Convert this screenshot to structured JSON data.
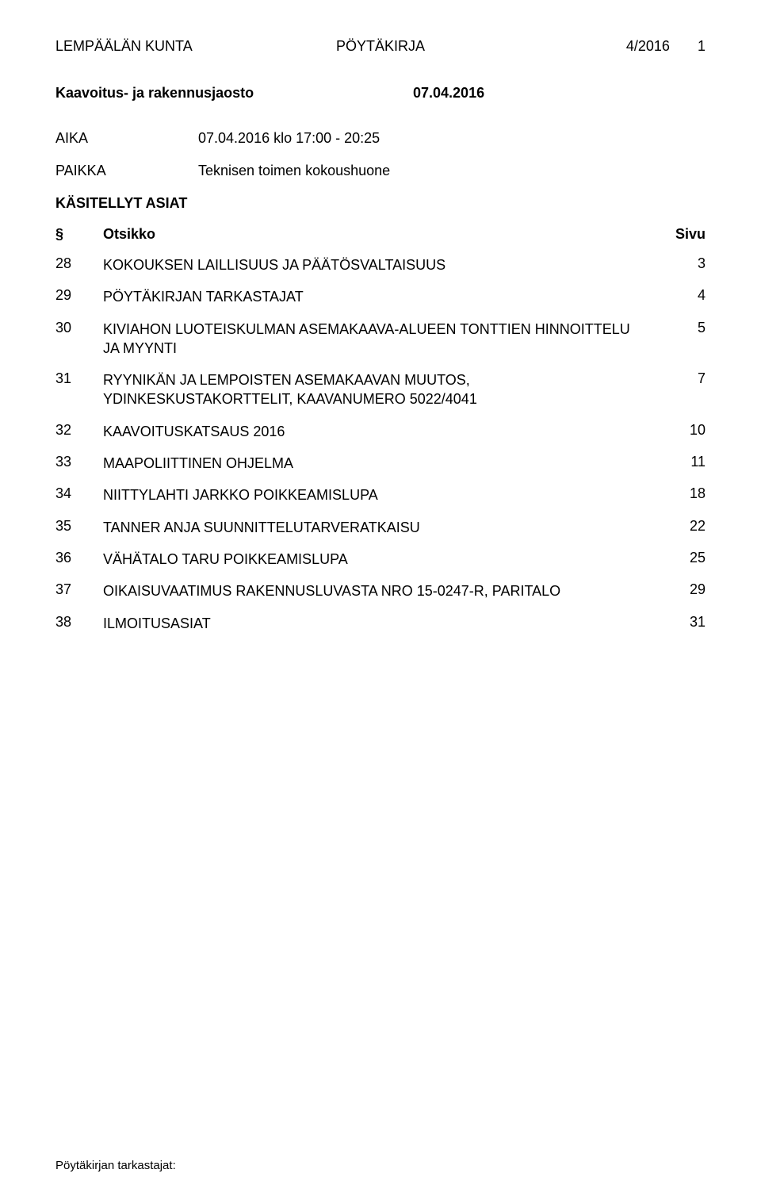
{
  "header": {
    "org": "LEMPÄÄLÄN KUNTA",
    "doc_type": "PÖYTÄKIRJA",
    "doc_num": "4/2016",
    "page": "1"
  },
  "subheader": {
    "board": "Kaavoitus- ja rakennusjaosto",
    "date": "07.04.2016"
  },
  "meta": {
    "aika_label": "AIKA",
    "aika_value": "07.04.2016 klo 17:00 - 20:25",
    "paikka_label": "PAIKKA",
    "paikka_value": "Teknisen toimen kokoushuone"
  },
  "section_title": "KÄSITELLYT ASIAT",
  "toc_header": {
    "num": "§",
    "title": "Otsikko",
    "page": "Sivu"
  },
  "toc": [
    {
      "num": "28",
      "title": "KOKOUKSEN LAILLISUUS JA PÄÄTÖSVALTAISUUS",
      "page": "3"
    },
    {
      "num": "29",
      "title": "PÖYTÄKIRJAN TARKASTAJAT",
      "page": "4"
    },
    {
      "num": "30",
      "title": "KIVIAHON LUOTEISKULMAN ASEMAKAAVA-ALUEEN TONTTIEN HINNOITTELU JA MYYNTI",
      "page": "5"
    },
    {
      "num": "31",
      "title": "RYYNIKÄN JA LEMPOISTEN ASEMAKAAVAN MUUTOS, YDINKESKUSTAKORTTELIT, KAAVANUMERO 5022/4041",
      "page": "7"
    },
    {
      "num": "32",
      "title": "KAAVOITUSKATSAUS 2016",
      "page": "10"
    },
    {
      "num": "33",
      "title": "MAAPOLIITTINEN OHJELMA",
      "page": "11"
    },
    {
      "num": "34",
      "title": "NIITTYLAHTI JARKKO POIKKEAMISLUPA",
      "page": "18"
    },
    {
      "num": "35",
      "title": "TANNER ANJA SUUNNITTELUTARVERATKAISU",
      "page": "22"
    },
    {
      "num": "36",
      "title": "VÄHÄTALO TARU POIKKEAMISLUPA",
      "page": "25"
    },
    {
      "num": "37",
      "title": "OIKAISUVAATIMUS RAKENNUSLUVASTA NRO 15-0247-R, PARITALO",
      "page": "29"
    },
    {
      "num": "38",
      "title": "ILMOITUSASIAT",
      "page": "31"
    }
  ],
  "footer": "Pöytäkirjan tarkastajat:"
}
